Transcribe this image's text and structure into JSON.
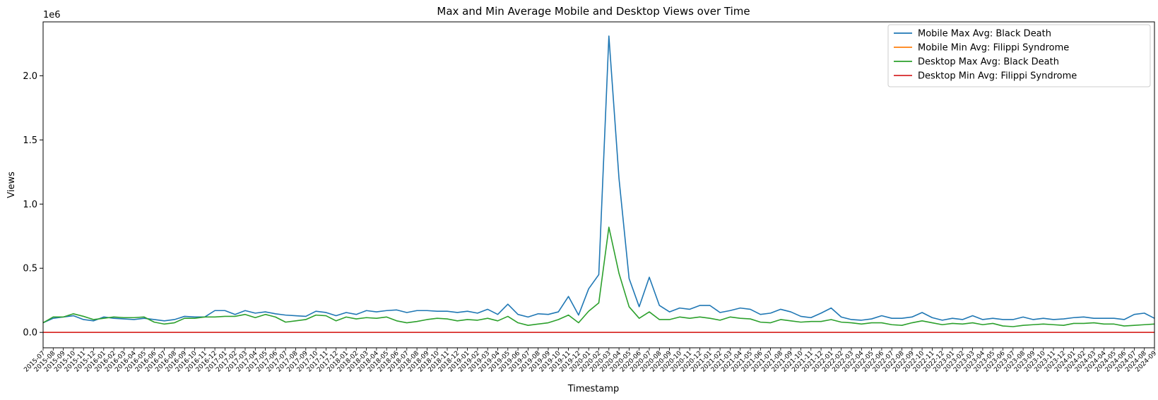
{
  "chart_data": {
    "type": "line",
    "title": "Max and Min Average Mobile and Desktop Views over Time",
    "xlabel": "Timestamp",
    "ylabel": "Views",
    "y_offset_label": "1e6",
    "ylim": [
      -0.12,
      2.42
    ],
    "yticks": [
      0.0,
      0.5,
      1.0,
      1.5,
      2.0
    ],
    "ytick_labels": [
      "0.0",
      "0.5",
      "1.0",
      "1.5",
      "2.0"
    ],
    "grid": false,
    "legend_position": "top-right",
    "x": [
      "2015-07",
      "2015-08",
      "2015-09",
      "2015-10",
      "2015-11",
      "2015-12",
      "2016-01",
      "2016-02",
      "2016-03",
      "2016-04",
      "2016-05",
      "2016-06",
      "2016-07",
      "2016-08",
      "2016-09",
      "2016-10",
      "2016-11",
      "2016-12",
      "2017-01",
      "2017-02",
      "2017-03",
      "2017-04",
      "2017-05",
      "2017-06",
      "2017-07",
      "2017-08",
      "2017-09",
      "2017-10",
      "2017-11",
      "2017-12",
      "2018-01",
      "2018-02",
      "2018-03",
      "2018-04",
      "2018-05",
      "2018-06",
      "2018-07",
      "2018-08",
      "2018-09",
      "2018-10",
      "2018-11",
      "2018-12",
      "2019-01",
      "2019-02",
      "2019-03",
      "2019-04",
      "2019-05",
      "2019-06",
      "2019-07",
      "2019-08",
      "2019-09",
      "2019-10",
      "2019-11",
      "2019-12",
      "2020-01",
      "2020-02",
      "2020-03",
      "2020-04",
      "2020-05",
      "2020-06",
      "2020-07",
      "2020-08",
      "2020-09",
      "2020-10",
      "2020-11",
      "2020-12",
      "2021-01",
      "2021-02",
      "2021-03",
      "2021-04",
      "2021-05",
      "2021-06",
      "2021-07",
      "2021-08",
      "2021-09",
      "2021-10",
      "2021-11",
      "2021-12",
      "2022-01",
      "2022-02",
      "2022-03",
      "2022-04",
      "2022-05",
      "2022-06",
      "2022-07",
      "2022-08",
      "2022-09",
      "2022-10",
      "2022-11",
      "2022-12",
      "2023-01",
      "2023-02",
      "2023-03",
      "2023-04",
      "2023-05",
      "2023-06",
      "2023-07",
      "2023-08",
      "2023-09",
      "2023-10",
      "2023-11",
      "2023-12",
      "2024-01",
      "2024-02",
      "2024-03",
      "2024-04",
      "2024-05",
      "2024-06",
      "2024-07",
      "2024-08",
      "2024-09"
    ],
    "series": [
      {
        "name": "Mobile Max Avg: Black Death",
        "color": "#1f77b4",
        "values": [
          0.075,
          0.11,
          0.12,
          0.13,
          0.1,
          0.09,
          0.12,
          0.11,
          0.105,
          0.1,
          0.11,
          0.1,
          0.09,
          0.1,
          0.125,
          0.12,
          0.12,
          0.17,
          0.17,
          0.14,
          0.17,
          0.15,
          0.16,
          0.145,
          0.135,
          0.13,
          0.125,
          0.165,
          0.155,
          0.13,
          0.155,
          0.14,
          0.17,
          0.16,
          0.17,
          0.175,
          0.155,
          0.17,
          0.17,
          0.165,
          0.165,
          0.155,
          0.165,
          0.15,
          0.18,
          0.14,
          0.22,
          0.14,
          0.12,
          0.145,
          0.14,
          0.16,
          0.28,
          0.135,
          0.34,
          0.45,
          2.31,
          1.2,
          0.42,
          0.2,
          0.43,
          0.21,
          0.16,
          0.19,
          0.18,
          0.21,
          0.21,
          0.155,
          0.17,
          0.19,
          0.18,
          0.14,
          0.15,
          0.18,
          0.16,
          0.125,
          0.115,
          0.15,
          0.19,
          0.12,
          0.1,
          0.095,
          0.105,
          0.13,
          0.11,
          0.11,
          0.12,
          0.155,
          0.115,
          0.095,
          0.11,
          0.1,
          0.13,
          0.1,
          0.11,
          0.1,
          0.1,
          0.12,
          0.1,
          0.11,
          0.1,
          0.105,
          0.115,
          0.12,
          0.11,
          0.11,
          0.11,
          0.1,
          0.14,
          0.15,
          0.11
        ]
      },
      {
        "name": "Mobile Min Avg: Filippi Syndrome",
        "color": "#ff7f0e",
        "values": [
          0,
          0,
          0,
          0,
          0,
          0,
          0,
          0,
          0,
          0,
          0,
          0,
          0,
          0,
          0,
          0,
          0,
          0,
          0,
          0,
          0,
          0,
          0,
          0,
          0,
          0,
          0,
          0,
          0,
          0,
          0,
          0,
          0,
          0,
          0,
          0,
          0,
          0,
          0,
          0,
          0,
          0,
          0,
          0,
          0,
          0,
          0,
          0,
          0,
          0,
          0,
          0,
          0,
          0,
          0,
          0,
          0,
          0,
          0,
          0,
          0,
          0,
          0,
          0,
          0,
          0,
          0,
          0,
          0,
          0,
          0,
          0,
          0,
          0,
          0,
          0,
          0,
          0,
          0,
          0,
          0,
          0,
          0,
          0,
          0,
          0,
          0,
          0,
          0,
          0,
          0,
          0,
          0,
          0,
          0,
          0,
          0,
          0,
          0,
          0,
          0,
          0,
          0,
          0,
          0,
          0,
          0,
          0,
          0,
          0,
          0
        ]
      },
      {
        "name": "Desktop Max Avg: Black Death",
        "color": "#2ca02c",
        "values": [
          0.075,
          0.12,
          0.12,
          0.145,
          0.125,
          0.1,
          0.11,
          0.12,
          0.115,
          0.115,
          0.12,
          0.08,
          0.065,
          0.075,
          0.11,
          0.11,
          0.12,
          0.12,
          0.125,
          0.125,
          0.14,
          0.115,
          0.14,
          0.12,
          0.08,
          0.09,
          0.1,
          0.135,
          0.13,
          0.09,
          0.12,
          0.105,
          0.115,
          0.11,
          0.12,
          0.09,
          0.075,
          0.085,
          0.1,
          0.11,
          0.105,
          0.09,
          0.1,
          0.095,
          0.11,
          0.09,
          0.125,
          0.075,
          0.055,
          0.065,
          0.075,
          0.1,
          0.135,
          0.075,
          0.165,
          0.23,
          0.82,
          0.46,
          0.2,
          0.11,
          0.16,
          0.1,
          0.1,
          0.12,
          0.11,
          0.12,
          0.11,
          0.095,
          0.12,
          0.11,
          0.105,
          0.08,
          0.075,
          0.1,
          0.09,
          0.08,
          0.085,
          0.085,
          0.1,
          0.08,
          0.075,
          0.065,
          0.075,
          0.075,
          0.06,
          0.055,
          0.075,
          0.09,
          0.075,
          0.06,
          0.07,
          0.065,
          0.075,
          0.06,
          0.07,
          0.05,
          0.045,
          0.055,
          0.06,
          0.065,
          0.06,
          0.055,
          0.07,
          0.07,
          0.075,
          0.065,
          0.065,
          0.05,
          0.055,
          0.06,
          0.065
        ]
      },
      {
        "name": "Desktop Min Avg: Filippi Syndrome",
        "color": "#d62728",
        "values": [
          0,
          0,
          0,
          0,
          0,
          0,
          0,
          0,
          0,
          0,
          0,
          0,
          0,
          0,
          0,
          0,
          0,
          0,
          0,
          0,
          0,
          0,
          0,
          0,
          0,
          0,
          0,
          0,
          0,
          0,
          0,
          0,
          0,
          0,
          0,
          0,
          0,
          0,
          0,
          0,
          0,
          0,
          0,
          0,
          0,
          0,
          0,
          0,
          0,
          0,
          0,
          0,
          0,
          0,
          0,
          0,
          0,
          0,
          0,
          0,
          0,
          0,
          0,
          0,
          0,
          0,
          0,
          0,
          0,
          0,
          0,
          0,
          0,
          0,
          0,
          0,
          0,
          0,
          0,
          0,
          0,
          0,
          0,
          0,
          0,
          0,
          0,
          0,
          0,
          0,
          0,
          0,
          0,
          0,
          0,
          0,
          0,
          0,
          0,
          0,
          0,
          0,
          0,
          0,
          0,
          0,
          0,
          0,
          0,
          0,
          0
        ]
      }
    ]
  }
}
